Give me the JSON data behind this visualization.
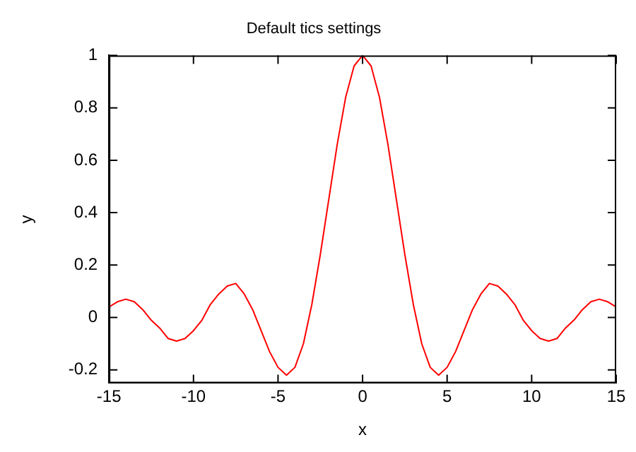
{
  "chart_data": {
    "type": "line",
    "title": "Default tics settings",
    "xlabel": "x",
    "ylabel": "y",
    "x": [
      -15,
      -14.5,
      -14,
      -13.5,
      -13,
      -12.5,
      -12,
      -11.5,
      -11,
      -10.5,
      -10,
      -9.5,
      -9,
      -8.5,
      -8,
      -7.5,
      -7,
      -6.5,
      -6,
      -5.5,
      -5,
      -4.5,
      -4,
      -3.5,
      -3,
      -2.5,
      -2,
      -1.5,
      -1,
      -0.5,
      0,
      0.5,
      1,
      1.5,
      2,
      2.5,
      3,
      3.5,
      4,
      4.5,
      5,
      5.5,
      6,
      6.5,
      7,
      7.5,
      8,
      8.5,
      9,
      9.5,
      10,
      10.5,
      11,
      11.5,
      12,
      12.5,
      13,
      13.5,
      14,
      14.5,
      15
    ],
    "series": [
      {
        "color": "#ff0000",
        "values": [
          0.04,
          0.06,
          0.07,
          0.06,
          0.03,
          -0.01,
          -0.04,
          -0.08,
          -0.09,
          -0.08,
          -0.05,
          -0.01,
          0.05,
          0.09,
          0.12,
          0.13,
          0.09,
          0.03,
          -0.05,
          -0.13,
          -0.19,
          -0.22,
          -0.19,
          -0.1,
          0.05,
          0.24,
          0.45,
          0.66,
          0.84,
          0.96,
          1,
          0.96,
          0.84,
          0.66,
          0.45,
          0.24,
          0.05,
          -0.1,
          -0.19,
          -0.22,
          -0.19,
          -0.13,
          -0.05,
          0.03,
          0.09,
          0.13,
          0.12,
          0.09,
          0.05,
          -0.01,
          -0.05,
          -0.08,
          -0.09,
          -0.08,
          -0.04,
          -0.01,
          0.03,
          0.06,
          0.07,
          0.06,
          0.04
        ]
      }
    ],
    "xlim": [
      -15,
      15
    ],
    "xticks": [
      -15,
      -10,
      -5,
      0,
      5,
      10,
      15
    ],
    "ylim": [
      -0.25,
      1
    ],
    "yticks": [
      -0.2,
      0,
      0.2,
      0.4,
      0.6,
      0.8,
      1
    ],
    "grid": false,
    "legend": false,
    "marker": "none",
    "line_style": "solid"
  }
}
